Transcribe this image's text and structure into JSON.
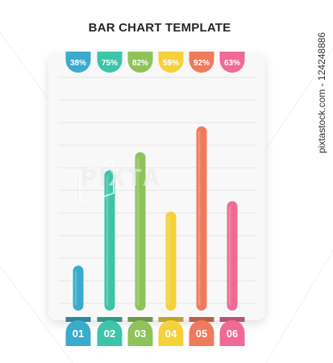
{
  "title": "BAR CHART TEMPLATE",
  "watermark": "PIXTA",
  "credit": "pixtastock.com - 124248886",
  "chart_data": {
    "type": "bar",
    "title": "BAR CHART TEMPLATE",
    "categories": [
      "01",
      "02",
      "03",
      "04",
      "05",
      "06"
    ],
    "values": [
      38,
      75,
      82,
      59,
      92,
      63
    ],
    "value_labels": [
      "38%",
      "75%",
      "82%",
      "59%",
      "92%",
      "63%"
    ],
    "colors": [
      "#3aabcc",
      "#3dc4a9",
      "#8dc35a",
      "#f5d13c",
      "#f07a5c",
      "#ef6a94"
    ],
    "ylim": [
      0,
      100
    ],
    "grid": true,
    "legend": "none"
  }
}
